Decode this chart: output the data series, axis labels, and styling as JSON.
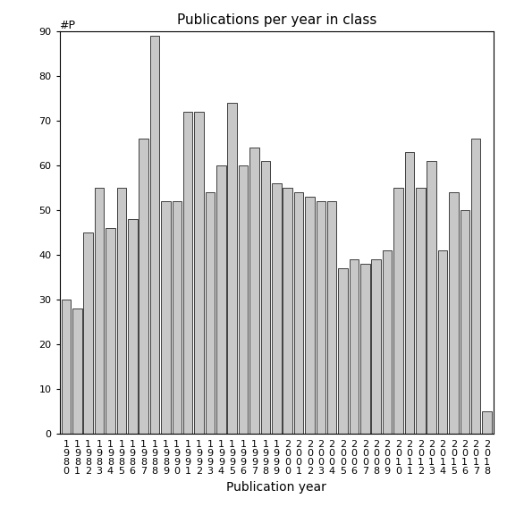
{
  "title": "Publications per year in class",
  "xlabel": "Publication year",
  "ylabel": "#P",
  "years": [
    1980,
    1981,
    1982,
    1983,
    1984,
    1985,
    1986,
    1987,
    1988,
    1989,
    1990,
    1991,
    1992,
    1993,
    1994,
    1995,
    1996,
    1997,
    1998,
    1999,
    2000,
    2001,
    2002,
    2003,
    2004,
    2005,
    2006,
    2007,
    2008,
    2009,
    2010,
    2011,
    2012,
    2013,
    2014,
    2015,
    2016,
    2017,
    2018
  ],
  "values": [
    30,
    28,
    45,
    55,
    46,
    55,
    48,
    66,
    89,
    52,
    52,
    72,
    72,
    54,
    60,
    74,
    60,
    64,
    61,
    56,
    55,
    54,
    53,
    52,
    52,
    37,
    39,
    38,
    39,
    41,
    55,
    63,
    55,
    61,
    41,
    54,
    50,
    66,
    5
  ],
  "bar_color": "#c8c8c8",
  "bar_edge_color": "#000000",
  "ylim": [
    0,
    90
  ],
  "yticks": [
    0,
    10,
    20,
    30,
    40,
    50,
    60,
    70,
    80,
    90
  ],
  "background_color": "#ffffff",
  "title_fontsize": 11,
  "tick_fontsize": 8,
  "xlabel_fontsize": 10
}
